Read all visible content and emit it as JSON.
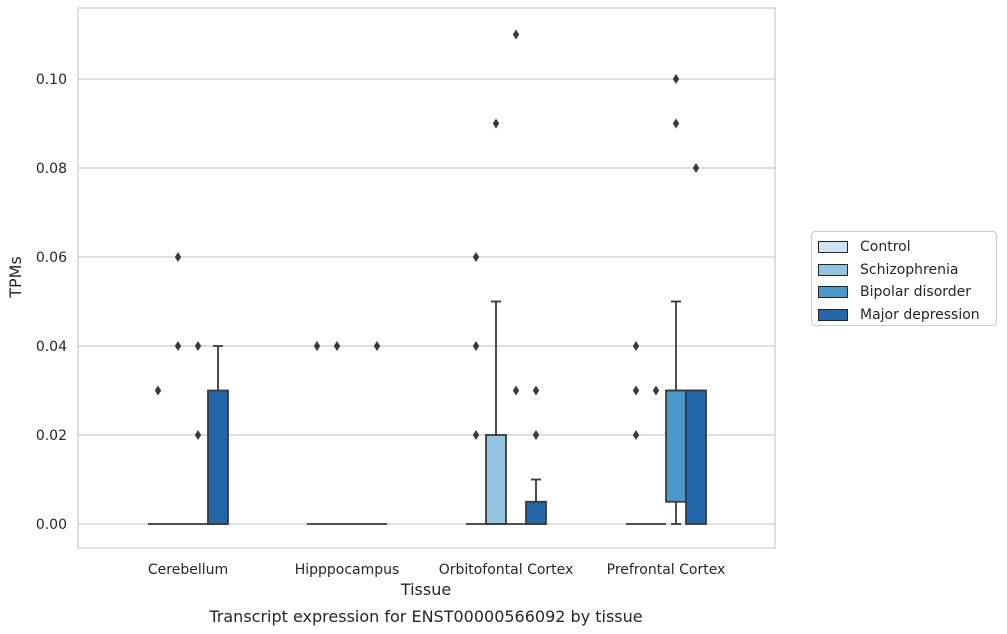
{
  "chart_data": {
    "type": "box",
    "title": "",
    "caption": "Transcript expression for ENST00000566092 by tissue",
    "xlabel": "Tissue",
    "ylabel": "TPMs",
    "ylim": [
      -0.005,
      0.116
    ],
    "yticks": [
      "0.00",
      "0.02",
      "0.04",
      "0.06",
      "0.08",
      "0.10"
    ],
    "ytick_values": [
      0,
      0.02,
      0.04,
      0.06,
      0.08,
      0.1
    ],
    "grid": "horizontal",
    "legend_position": "right",
    "categories": [
      "Cerebellum",
      "Hipppocampus",
      "Orbitofontal Cortex",
      "Prefrontal Cortex"
    ],
    "series": [
      {
        "name": "Control",
        "color": "#d0e1f2",
        "boxes": [
          {
            "q1": 0,
            "median": 0,
            "q3": 0,
            "whisker_low": 0,
            "whisker_high": 0,
            "outliers": [
              0.03
            ]
          },
          {
            "q1": 0,
            "median": 0,
            "q3": 0,
            "whisker_low": 0,
            "whisker_high": 0,
            "outliers": [
              0.04
            ]
          },
          {
            "q1": 0,
            "median": 0,
            "q3": 0,
            "whisker_low": 0,
            "whisker_high": 0,
            "outliers": [
              0.02,
              0.04,
              0.06
            ]
          },
          {
            "q1": 0,
            "median": 0,
            "q3": 0,
            "whisker_low": 0,
            "whisker_high": 0,
            "outliers": [
              0.02,
              0.03,
              0.04
            ]
          }
        ]
      },
      {
        "name": "Schizophrenia",
        "color": "#94c4df",
        "boxes": [
          {
            "q1": 0,
            "median": 0,
            "q3": 0,
            "whisker_low": 0,
            "whisker_high": 0,
            "outliers": [
              0.04,
              0.06
            ]
          },
          {
            "q1": 0,
            "median": 0,
            "q3": 0,
            "whisker_low": 0,
            "whisker_high": 0,
            "outliers": [
              0.04
            ]
          },
          {
            "q1": 0,
            "median": 0,
            "q3": 0.02,
            "whisker_low": 0,
            "whisker_high": 0.05,
            "outliers": [
              0.09
            ]
          },
          {
            "q1": 0,
            "median": 0,
            "q3": 0,
            "whisker_low": 0,
            "whisker_high": 0,
            "outliers": [
              0.03
            ]
          }
        ]
      },
      {
        "name": "Bipolar disorder",
        "color": "#4a98c9",
        "boxes": [
          {
            "q1": 0,
            "median": 0,
            "q3": 0,
            "whisker_low": 0,
            "whisker_high": 0,
            "outliers": [
              0.02,
              0.04
            ]
          },
          {
            "q1": 0,
            "median": 0,
            "q3": 0,
            "whisker_low": 0,
            "whisker_high": 0,
            "outliers": []
          },
          {
            "q1": 0,
            "median": 0,
            "q3": 0,
            "whisker_low": 0,
            "whisker_high": 0,
            "outliers": [
              0.03,
              0.11
            ]
          },
          {
            "q1": 0.005,
            "median": 0.03,
            "q3": 0.03,
            "whisker_low": 0,
            "whisker_high": 0.05,
            "outliers": [
              0.09,
              0.1
            ]
          }
        ]
      },
      {
        "name": "Major depression",
        "color": "#2366aa",
        "boxes": [
          {
            "q1": 0,
            "median": 0,
            "q3": 0.03,
            "whisker_low": 0,
            "whisker_high": 0.04,
            "outliers": []
          },
          {
            "q1": 0,
            "median": 0,
            "q3": 0,
            "whisker_low": 0,
            "whisker_high": 0,
            "outliers": [
              0.04
            ]
          },
          {
            "q1": 0,
            "median": 0,
            "q3": 0.005,
            "whisker_low": 0,
            "whisker_high": 0.01,
            "outliers": [
              0.02,
              0.03
            ]
          },
          {
            "q1": 0,
            "median": 0.03,
            "q3": 0.03,
            "whisker_low": 0,
            "whisker_high": 0.03,
            "outliers": [
              0.08
            ]
          }
        ]
      }
    ]
  },
  "colors": {
    "grid": "#cccccc",
    "axis_frame": "#cccccc",
    "box_edge": "#3a3a3a",
    "outlier": "#3a3a3a"
  }
}
